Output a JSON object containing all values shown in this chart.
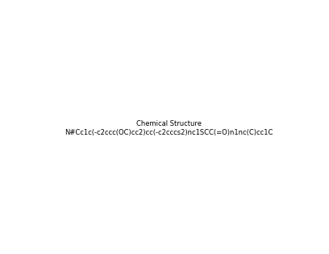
{
  "smiles": "N#Cc1c(-c2ccc(OC)cc2)cc(-c2cccs2)nc1SCC(=O)n1nc(C)cc1C",
  "title": "",
  "bg_color": "#ffffff",
  "line_color": "#000000",
  "figsize": [
    4.08,
    3.15
  ],
  "dpi": 100
}
